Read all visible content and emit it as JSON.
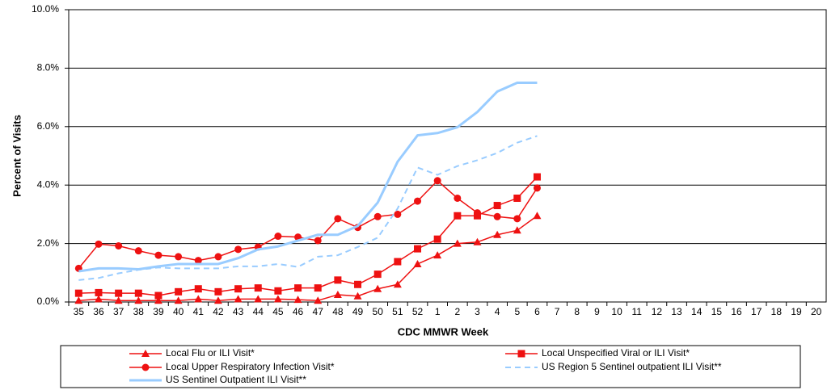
{
  "chart_data": {
    "type": "line",
    "x_label": "CDC MMWR Week",
    "y_label": "Percent of Visits",
    "categories": [
      "35",
      "36",
      "37",
      "38",
      "39",
      "40",
      "41",
      "42",
      "43",
      "44",
      "45",
      "46",
      "47",
      "48",
      "49",
      "50",
      "51",
      "52",
      "1",
      "2",
      "3",
      "4",
      "5",
      "6",
      "7",
      "8",
      "9",
      "10",
      "11",
      "12",
      "13",
      "14",
      "15",
      "16",
      "17",
      "18",
      "19",
      "20"
    ],
    "ylim": [
      0,
      10
    ],
    "yticks": [
      {
        "value": 0,
        "label": "0.0%"
      },
      {
        "value": 2,
        "label": "2.0%"
      },
      {
        "value": 4,
        "label": "4.0%"
      },
      {
        "value": 6,
        "label": "6.0%"
      },
      {
        "value": 8,
        "label": "8.0%"
      },
      {
        "value": 10,
        "label": "10.0%"
      }
    ],
    "grid": true,
    "legend": "bottom",
    "series": [
      {
        "name": "Local Flu or ILI Visit*",
        "color": "#ee1111",
        "marker": "triangle",
        "dash": false,
        "width": 1.5,
        "values": [
          0.05,
          0.1,
          0.05,
          0.05,
          0.05,
          0.05,
          0.1,
          0.05,
          0.1,
          0.1,
          0.1,
          0.08,
          0.05,
          0.25,
          0.2,
          0.45,
          0.6,
          1.3,
          1.6,
          2.0,
          2.05,
          2.3,
          2.45,
          2.95,
          null,
          null,
          null,
          null,
          null,
          null,
          null,
          null,
          null,
          null,
          null,
          null,
          null,
          null
        ]
      },
      {
        "name": "Local Unspecified Viral or ILI Visit*",
        "color": "#ee1111",
        "marker": "square",
        "dash": false,
        "width": 1.5,
        "values": [
          0.3,
          0.32,
          0.3,
          0.3,
          0.22,
          0.35,
          0.45,
          0.35,
          0.45,
          0.48,
          0.38,
          0.48,
          0.48,
          0.75,
          0.6,
          0.95,
          1.38,
          1.82,
          2.15,
          2.95,
          2.95,
          3.3,
          3.55,
          4.28,
          null,
          null,
          null,
          null,
          null,
          null,
          null,
          null,
          null,
          null,
          null,
          null,
          null,
          null
        ]
      },
      {
        "name": "Local Upper Respiratory Infection Visit*",
        "color": "#ee1111",
        "marker": "circle",
        "dash": false,
        "width": 1.5,
        "values": [
          1.15,
          1.98,
          1.92,
          1.75,
          1.6,
          1.55,
          1.42,
          1.55,
          1.8,
          1.88,
          2.25,
          2.22,
          2.1,
          2.85,
          2.55,
          2.92,
          3.0,
          3.45,
          4.15,
          3.55,
          3.05,
          2.92,
          2.85,
          3.9,
          null,
          null,
          null,
          null,
          null,
          null,
          null,
          null,
          null,
          null,
          null,
          null,
          null,
          null
        ]
      },
      {
        "name": "US Region 5 Sentinel outpatient ILI Visit**",
        "color": "#99ccff",
        "marker": "none",
        "dash": true,
        "width": 2,
        "values": [
          0.75,
          0.82,
          0.98,
          1.1,
          1.18,
          1.15,
          1.15,
          1.15,
          1.22,
          1.22,
          1.3,
          1.2,
          1.55,
          1.6,
          1.88,
          2.2,
          3.2,
          4.6,
          4.35,
          4.65,
          4.85,
          5.1,
          5.45,
          5.68,
          null,
          null,
          null,
          null,
          null,
          null,
          null,
          null,
          null,
          null,
          null,
          null,
          null,
          null
        ]
      },
      {
        "name": "US Sentinel Outpatient ILI Visit**",
        "color": "#99ccff",
        "marker": "none",
        "dash": false,
        "width": 3,
        "values": [
          1.05,
          1.15,
          1.15,
          1.12,
          1.22,
          1.3,
          1.3,
          1.3,
          1.5,
          1.8,
          1.9,
          2.1,
          2.3,
          2.3,
          2.6,
          3.4,
          4.8,
          5.7,
          5.78,
          5.98,
          6.5,
          7.2,
          7.5,
          7.5,
          null,
          null,
          null,
          null,
          null,
          null,
          null,
          null,
          null,
          null,
          null,
          null,
          null,
          null
        ]
      }
    ]
  }
}
